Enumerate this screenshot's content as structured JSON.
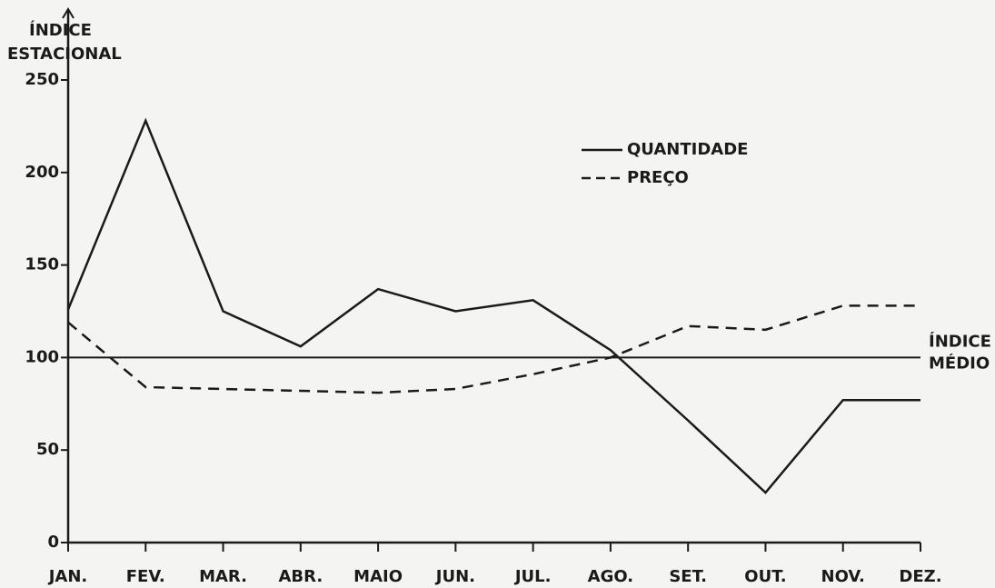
{
  "chart_data": {
    "type": "line",
    "y_label_lines": [
      "ÍNDICE",
      "ESTACIONAL"
    ],
    "categories": [
      "JAN.",
      "FEV.",
      "MAR.",
      "ABR.",
      "MAIO",
      "JUN.",
      "JUL.",
      "AGO.",
      "SET.",
      "OUT.",
      "NOV.",
      "DEZ."
    ],
    "series": [
      {
        "name": "QUANTIDADE",
        "color": "#1a1a1a",
        "line_style": "solid",
        "values": [
          126,
          228,
          125,
          106,
          137,
          125,
          131,
          104,
          66,
          27,
          77,
          77
        ]
      },
      {
        "name": "PREÇO",
        "color": "#1a1a1a",
        "line_style": "dashed",
        "values": [
          119,
          84,
          83,
          82,
          81,
          83,
          91,
          100,
          117,
          115,
          128,
          128
        ]
      }
    ],
    "reference_line": {
      "value": 100,
      "label_lines": [
        "ÍNDICE",
        "MÉDIO"
      ]
    },
    "ylim": [
      0,
      250
    ],
    "yticks": [
      0,
      50,
      100,
      150,
      200,
      250
    ],
    "legend": "top-center"
  }
}
